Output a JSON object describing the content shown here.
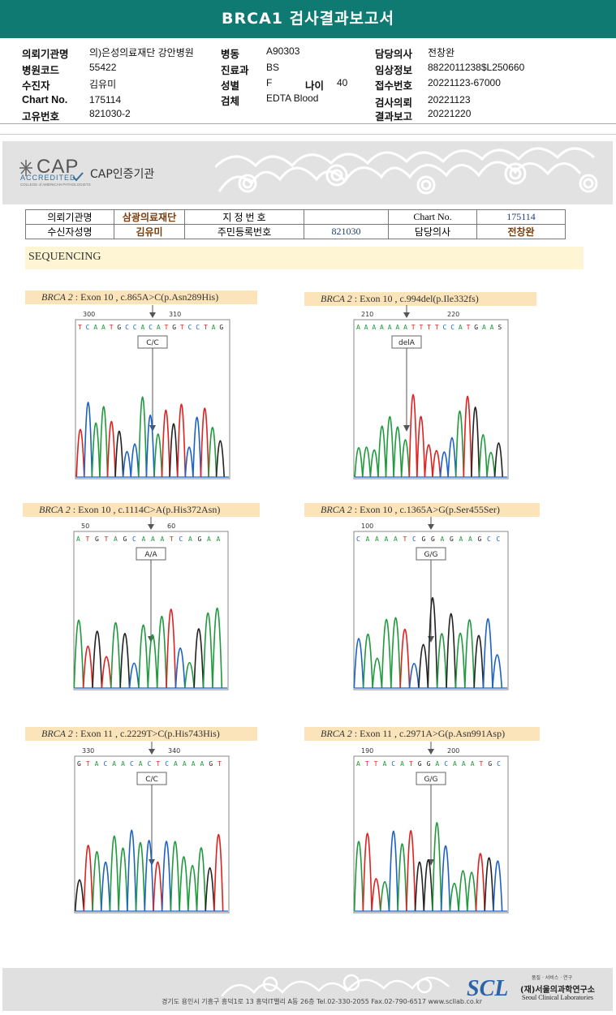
{
  "title": "BRCA1 검사결과보고서",
  "info": {
    "c1": [
      {
        "label": "의뢰기관명",
        "value": "의)은성의료재단 강안병원"
      },
      {
        "label": "병원코드",
        "value": "55422"
      },
      {
        "label": "수진자",
        "value": "김유미"
      },
      {
        "label": "Chart No.",
        "value": "175114"
      },
      {
        "label": "고유번호",
        "value": "821030-2"
      }
    ],
    "c2": [
      {
        "label": "병동",
        "value": "A90303"
      },
      {
        "label": "진료과",
        "value": "BS"
      },
      {
        "label": "성별",
        "value": "F"
      },
      {
        "label": "검체",
        "value": "EDTA Blood"
      }
    ],
    "age": {
      "label": "나이",
      "value": "40"
    },
    "c3": [
      {
        "label": "담당의사",
        "value": "전창완"
      },
      {
        "label": "임상정보",
        "value": "8822011238$L250660"
      },
      {
        "label": "접수번호",
        "value": "20221123-67000"
      },
      {
        "label": "검사의뢰",
        "value": "20221123"
      },
      {
        "label": "결과보고",
        "value": "20221220"
      }
    ]
  },
  "cap": {
    "big": "CAP",
    "accredited": "ACCREDITED",
    "college": "COLLEGE of AMERICAN PATHOLOGISTS",
    "org": "CAP인증기관"
  },
  "patient_table": {
    "r1": [
      "의뢰기관명",
      "삼광의료재단",
      "지 정 번 호",
      "",
      "Chart No.",
      "175114"
    ],
    "r2": [
      "수신자성명",
      "김유미",
      "주민등록번호",
      "821030",
      "담당의사",
      "전창완"
    ]
  },
  "section": "SEQUENCING",
  "variants": [
    {
      "gene": "BRCA 2",
      "desc": " : Exon 10 , c.865A>C(p.Asn289His)",
      "pos1": "300",
      "pos2": "310",
      "seq": "T C A A T G C C A C A T G T C C T A G",
      "call": "C/C",
      "colors": {
        "green": "#1f9a3c",
        "red": "#e0211f",
        "blue": "#1c62c4",
        "black": "#222222"
      }
    },
    {
      "gene": "BRCA 2",
      "desc": " : Exon 10 , c.994del(p.Ile332fs)",
      "pos1": "210",
      "pos2": "220",
      "seq": "A A A A A A A T T T T C C A T G A A S",
      "call": "delA"
    },
    {
      "gene": "BRCA 2",
      "desc": " : Exon 10 , c.1114C>A(p.His372Asn)",
      "pos1": "50",
      "pos2": "60",
      "seq": "A T G T A G C A A A T C A G A A",
      "call": "A/A"
    },
    {
      "gene": "BRCA 2",
      "desc": " : Exon 10 , c.1365A>G(p.Ser455Ser)",
      "pos1": "100",
      "pos2": "",
      "seq": "C A A A A T C G G A G A A G C C",
      "call": "G/G"
    },
    {
      "gene": "BRCA 2",
      "desc": " : Exon 11 , c.2229T>C(p.His743His)",
      "pos1": "330",
      "pos2": "340",
      "seq": "G T A C A A C A C T C A A A A G T",
      "call": "C/C"
    },
    {
      "gene": "BRCA 2",
      "desc": " : Exon 11 , c.2971A>G(p.Asn991Asp)",
      "pos1": "190",
      "pos2": "200",
      "seq": "A T T A C A T G G A C A A A T G C",
      "call": "G/G"
    }
  ],
  "footer": {
    "address": "경기도 용인시 기흥구 흥덕1로 13 흥덕IT밸리 A동 26층  Tel.02-330-2055  Fax.02-790-6517  www.scllab.co.kr",
    "logo": "SCL",
    "tagline": "품질 · 서비스 · 연구",
    "name_ko": "(재)서울의과학연구소",
    "name_en": "Seoul Clinical Laboratories"
  }
}
